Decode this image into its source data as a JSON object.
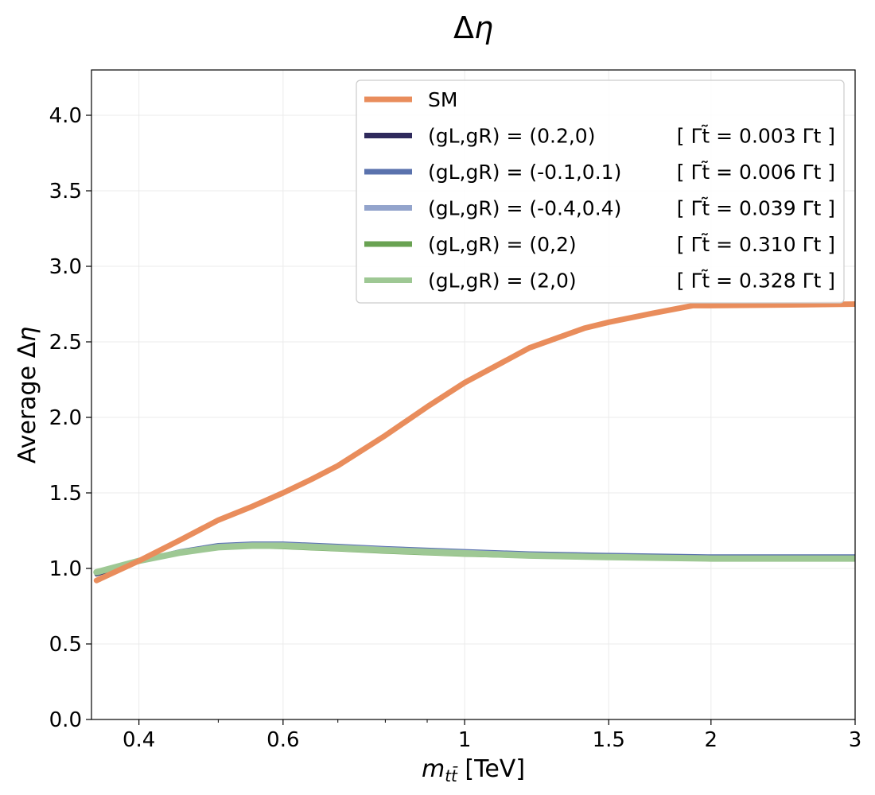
{
  "chart_data": {
    "type": "line",
    "title": "Δη",
    "xlabel": "m_tt̄ [TeV]",
    "ylabel": "Average Δη",
    "xscale": "log",
    "xlim": [
      0.35,
      3.0
    ],
    "ylim": [
      0.0,
      4.3
    ],
    "xticks": [
      0.4,
      0.6,
      1,
      1.5,
      2,
      3
    ],
    "xtick_labels": [
      "0.4",
      "0.6",
      "1",
      "1.5",
      "2",
      "3"
    ],
    "yticks": [
      0.0,
      0.5,
      1.0,
      1.5,
      2.0,
      2.5,
      3.0,
      3.5,
      4.0
    ],
    "ytick_labels": [
      "0.0",
      "0.5",
      "1.0",
      "1.5",
      "2.0",
      "2.5",
      "3.0",
      "3.5",
      "4.0"
    ],
    "grid": true,
    "legend_position": "top-right",
    "series": [
      {
        "name": "SM",
        "legend_label": "SM",
        "legend_width": "",
        "color": "#e98d5c",
        "x": [
          0.355,
          0.4,
          0.45,
          0.5,
          0.55,
          0.6,
          0.65,
          0.7,
          0.8,
          0.9,
          1.0,
          1.1,
          1.2,
          1.4,
          1.5,
          1.7,
          1.9,
          2.0,
          2.5,
          3.0
        ],
        "y": [
          0.92,
          1.05,
          1.19,
          1.32,
          1.41,
          1.5,
          1.59,
          1.68,
          1.88,
          2.07,
          2.23,
          2.35,
          2.46,
          2.59,
          2.63,
          2.69,
          2.74,
          2.74,
          2.745,
          2.75
        ]
      },
      {
        "name": "(gL,gR) = (0.2,0)",
        "legend_label": "(gL,gR) = (0.2,0)",
        "legend_width": "[ Γt̃ = 0.003 Γt ]",
        "color": "#2f2a5c",
        "x": [
          0.355,
          0.4,
          0.45,
          0.5,
          0.55,
          0.6,
          0.7,
          0.8,
          1.0,
          1.2,
          1.5,
          2.0,
          2.5,
          3.0
        ],
        "y": [
          0.96,
          1.05,
          1.11,
          1.15,
          1.16,
          1.16,
          1.145,
          1.13,
          1.11,
          1.09,
          1.08,
          1.07,
          1.07,
          1.07
        ]
      },
      {
        "name": "(gL,gR) = (-0.1,0.1)",
        "legend_label": "(gL,gR) = (-0.1,0.1)",
        "legend_width": "[ Γt̃ = 0.006 Γt ]",
        "color": "#5a72ad",
        "x": [
          0.355,
          0.4,
          0.45,
          0.5,
          0.55,
          0.6,
          0.7,
          0.8,
          1.0,
          1.2,
          1.5,
          2.0,
          2.5,
          3.0
        ],
        "y": [
          0.965,
          1.05,
          1.115,
          1.155,
          1.165,
          1.165,
          1.15,
          1.135,
          1.115,
          1.1,
          1.09,
          1.08,
          1.08,
          1.08
        ]
      },
      {
        "name": "(gL,gR) = (-0.4,0.4)",
        "legend_label": "(gL,gR) = (-0.4,0.4)",
        "legend_width": "[ Γt̃ = 0.039 Γt ]",
        "color": "#93a4cc",
        "x": [
          0.355,
          0.4,
          0.45,
          0.5,
          0.55,
          0.6,
          0.7,
          0.8,
          1.0,
          1.2,
          1.5,
          2.0,
          2.5,
          3.0
        ],
        "y": [
          0.97,
          1.05,
          1.11,
          1.15,
          1.16,
          1.16,
          1.145,
          1.13,
          1.11,
          1.095,
          1.08,
          1.07,
          1.07,
          1.07
        ]
      },
      {
        "name": "(gL,gR) = (0,2)",
        "legend_label": "(gL,gR) = (0,2)",
        "legend_width": "[ Γt̃ = 0.310 Γt ]",
        "color": "#69a252",
        "x": [
          0.355,
          0.4,
          0.45,
          0.5,
          0.55,
          0.6,
          0.7,
          0.8,
          1.0,
          1.2,
          1.5,
          2.0,
          2.5,
          3.0
        ],
        "y": [
          0.98,
          1.05,
          1.1,
          1.135,
          1.145,
          1.14,
          1.125,
          1.11,
          1.09,
          1.08,
          1.07,
          1.06,
          1.06,
          1.06
        ]
      },
      {
        "name": "(gL,gR) = (2,0)",
        "legend_label": "(gL,gR) = (2,0)",
        "legend_width": "[ Γt̃ = 0.328 Γt ]",
        "color": "#9ec894",
        "x": [
          0.355,
          0.4,
          0.45,
          0.5,
          0.55,
          0.6,
          0.7,
          0.8,
          1.0,
          1.2,
          1.5,
          2.0,
          2.5,
          3.0
        ],
        "y": [
          0.975,
          1.05,
          1.105,
          1.14,
          1.15,
          1.15,
          1.135,
          1.12,
          1.1,
          1.085,
          1.075,
          1.065,
          1.065,
          1.065
        ]
      }
    ]
  }
}
